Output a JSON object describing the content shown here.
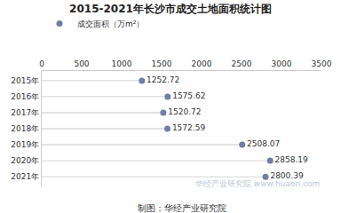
{
  "chart_data": {
    "type": "lollipop",
    "title": "2015-2021年长沙市成交土地面积统计图",
    "orientation": "horizontal",
    "categories": [
      "2015年",
      "2016年",
      "2017年",
      "2018年",
      "2019年",
      "2020年",
      "2021年"
    ],
    "series": [
      {
        "name": "成交面积（万m²）",
        "color": "#6f7fa3",
        "values": [
          1252.72,
          1575.62,
          1520.72,
          1572.59,
          2508.07,
          2858.19,
          2800.39
        ]
      }
    ],
    "xlim": [
      0,
      3500
    ],
    "xticks": [
      0,
      500,
      1000,
      1500,
      2000,
      2500,
      3000,
      3500
    ],
    "grid": false,
    "legend": "upper left",
    "data_labels": true,
    "annotations": [
      "制图：华经产业研究院",
      "华经产业研究院 www.huaon.com"
    ]
  }
}
